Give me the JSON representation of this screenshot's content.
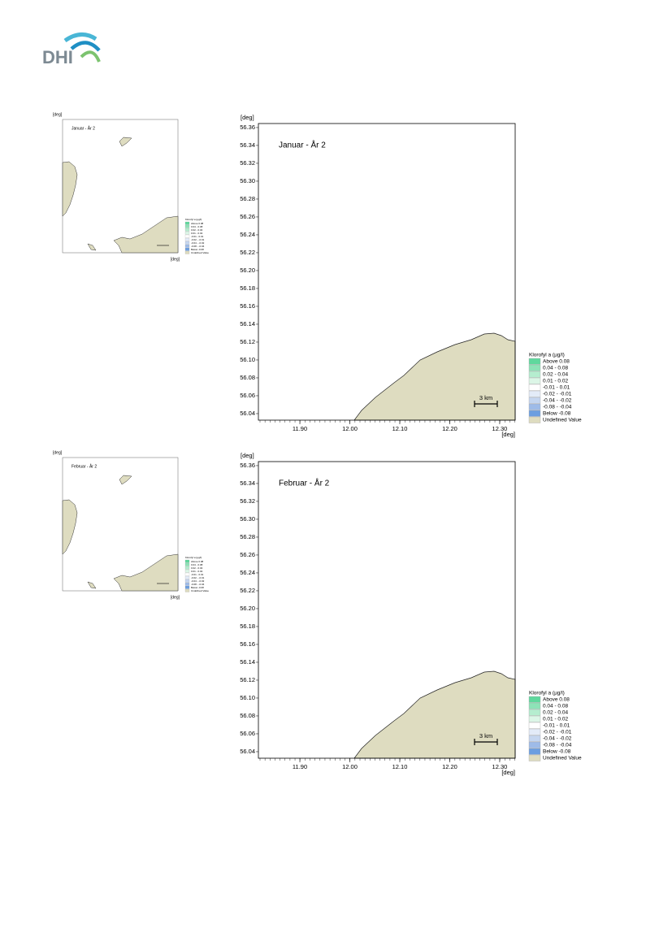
{
  "logo": "DHI",
  "panels": [
    {
      "thumbnail": {
        "title": "Januar - År 2",
        "y_unit": "[deg]",
        "x_unit": "[deg]"
      },
      "map": {
        "title": "Januar - År 2",
        "y_unit": "[deg]",
        "x_unit": "[deg]",
        "xlim": [
          11.817,
          12.331
        ],
        "ylim": [
          56.0327,
          56.3645
        ],
        "xticks": [
          {
            "value": 11.9,
            "label": "11.90"
          },
          {
            "value": 12.0,
            "label": "12.00"
          },
          {
            "value": 12.1,
            "label": "12.10"
          },
          {
            "value": 12.2,
            "label": "12.20"
          },
          {
            "value": 12.3,
            "label": "12.30"
          }
        ],
        "yticks": [
          56.36,
          56.34,
          56.32,
          {
            "value": 56.3,
            "label": "56.30"
          },
          56.28,
          56.26,
          56.24,
          56.22,
          {
            "value": 56.2,
            "label": "56.20"
          },
          56.18,
          56.16,
          56.14,
          56.12,
          {
            "value": 56.1,
            "label": "56.10"
          },
          56.08,
          56.06,
          56.04
        ],
        "scale_bar": "3 km",
        "legend": {
          "title": "Klorofyl a (µg/l)",
          "items": [
            {
              "label": "Above  0.08",
              "color": "#5fd89d"
            },
            {
              "label": "0.04 -  0.08",
              "color": "#8de3b7"
            },
            {
              "label": "0.02 -  0.04",
              "color": "#b5edcf"
            },
            {
              "label": "0.01 -  0.02",
              "color": "#dcf6e7"
            },
            {
              "label": "-0.01 -  0.01",
              "color": "#ffffff"
            },
            {
              "label": "-0.02 - -0.01",
              "color": "#e3ebf8"
            },
            {
              "label": "-0.04 - -0.02",
              "color": "#c5d6f0"
            },
            {
              "label": "-0.08 - -0.04",
              "color": "#9ebbe8"
            },
            {
              "label": "Below -0.08",
              "color": "#6b9ee0"
            },
            {
              "label": "Undefined Value",
              "color": "#dedcc0"
            }
          ]
        }
      }
    },
    {
      "thumbnail": {
        "title": "Februar - År 2",
        "y_unit": "[deg]",
        "x_unit": "[deg]"
      },
      "map": {
        "title": "Februar - År 2",
        "y_unit": "[deg]",
        "x_unit": "[deg]",
        "xlim": [
          11.817,
          12.331
        ],
        "ylim": [
          56.0327,
          56.3645
        ],
        "xticks": [
          {
            "value": 11.9,
            "label": "11.90"
          },
          {
            "value": 12.0,
            "label": "12.00"
          },
          {
            "value": 12.1,
            "label": "12.10"
          },
          {
            "value": 12.2,
            "label": "12.20"
          },
          {
            "value": 12.3,
            "label": "12.30"
          }
        ],
        "yticks": [
          56.36,
          56.34,
          56.32,
          {
            "value": 56.3,
            "label": "56.30"
          },
          56.28,
          56.26,
          56.24,
          56.22,
          {
            "value": 56.2,
            "label": "56.20"
          },
          56.18,
          56.16,
          56.14,
          56.12,
          {
            "value": 56.1,
            "label": "56.10"
          },
          56.08,
          56.06,
          56.04
        ],
        "scale_bar": "3 km",
        "legend": {
          "title": "Klorofyl a (µg/l)",
          "items": [
            {
              "label": "Above  0.08",
              "color": "#5fd89d"
            },
            {
              "label": "0.04 -  0.08",
              "color": "#8de3b7"
            },
            {
              "label": "0.02 -  0.04",
              "color": "#b5edcf"
            },
            {
              "label": "0.01 -  0.02",
              "color": "#dcf6e7"
            },
            {
              "label": "-0.01 -  0.01",
              "color": "#ffffff"
            },
            {
              "label": "-0.02 - -0.01",
              "color": "#e3ebf8"
            },
            {
              "label": "-0.04 - -0.02",
              "color": "#c5d6f0"
            },
            {
              "label": "-0.08 - -0.04",
              "color": "#9ebbe8"
            },
            {
              "label": "Below -0.08",
              "color": "#6b9ee0"
            },
            {
              "label": "Undefined Value",
              "color": "#dedcc0"
            }
          ]
        }
      }
    }
  ]
}
